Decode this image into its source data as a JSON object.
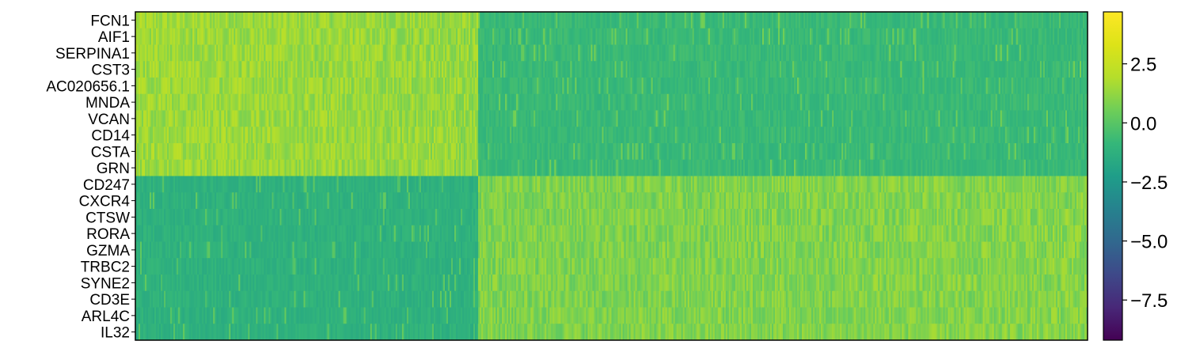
{
  "chart_data": {
    "type": "heatmap",
    "title": "",
    "xlabel": "",
    "ylabel": "",
    "genes": [
      "FCN1",
      "AIF1",
      "SERPINA1",
      "CST3",
      "AC020656.1",
      "MNDA",
      "VCAN",
      "CD14",
      "CSTA",
      "GRN",
      "CD247",
      "CXCR4",
      "CTSW",
      "RORA",
      "GZMA",
      "TRBC2",
      "SYNE2",
      "CD3E",
      "ARL4C",
      "IL32"
    ],
    "gene_groups": [
      {
        "genes": [
          "FCN1",
          "AIF1",
          "SERPINA1",
          "CST3",
          "AC020656.1",
          "MNDA",
          "VCAN",
          "CD14",
          "CSTA",
          "GRN"
        ],
        "high_in": "left cells",
        "approx_high_value": 1.5,
        "approx_low_value": -0.8
      },
      {
        "genes": [
          "CD247",
          "CXCR4",
          "CTSW",
          "RORA",
          "GZMA",
          "TRBC2",
          "SYNE2",
          "CD3E",
          "ARL4C",
          "IL32"
        ],
        "high_in": "right cells",
        "approx_high_value": 1.0,
        "approx_low_value": -1.2
      }
    ],
    "colormap": "viridis",
    "colorbar": {
      "vmin": -9.2,
      "vmax": 4.7,
      "ticks": [
        2.5,
        0.0,
        -2.5,
        -5.0,
        -7.5
      ],
      "tick_labels": [
        "2.5",
        "0.0",
        "−2.5",
        "−5.0",
        "−7.5"
      ]
    },
    "x_ticks": "none",
    "grid": false
  }
}
